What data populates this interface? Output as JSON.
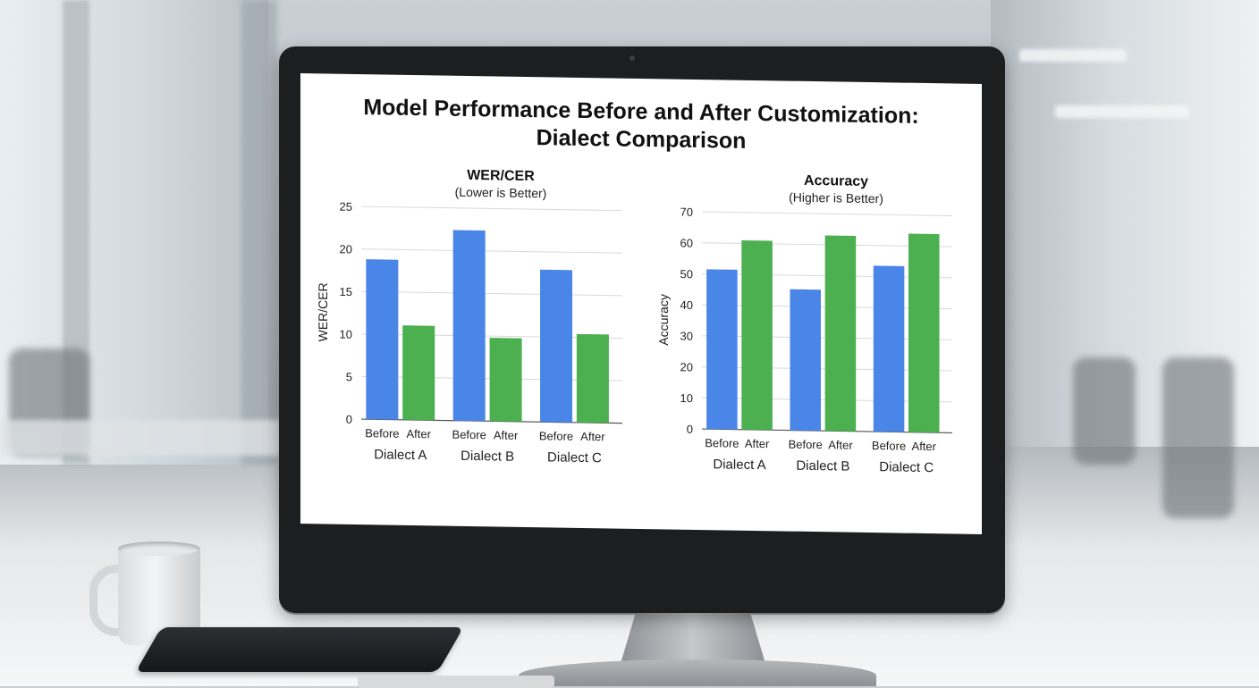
{
  "page_title": {
    "line1": "Model Performance Before and After Customization:",
    "line2": "Dialect Comparison"
  },
  "colors": {
    "before": "#4a86e8",
    "after": "#4caf50",
    "grid": "#d9d9d9"
  },
  "chart_data": [
    {
      "type": "bar",
      "title": "WER/CER",
      "subtitle": "(Lower is Better)",
      "ylabel": "WER/CER",
      "xlabel": "",
      "ylim": [
        0,
        25
      ],
      "yticks": [
        0,
        5,
        10,
        15,
        20,
        25
      ],
      "grid": true,
      "categories": [
        "Dialect A",
        "Dialect B",
        "Dialect C"
      ],
      "bar_labels": [
        "Before",
        "After"
      ],
      "series": [
        {
          "name": "Before",
          "values": [
            18.8,
            22.4,
            17.9
          ]
        },
        {
          "name": "After",
          "values": [
            11.1,
            9.8,
            10.4
          ]
        }
      ]
    },
    {
      "type": "bar",
      "title": "Accuracy",
      "subtitle": "(Higher is Better)",
      "ylabel": "Accuracy",
      "xlabel": "",
      "ylim": [
        0,
        70
      ],
      "yticks": [
        0,
        10,
        20,
        30,
        40,
        50,
        60,
        70
      ],
      "grid": true,
      "categories": [
        "Dialect A",
        "Dialect B",
        "Dialect C"
      ],
      "bar_labels": [
        "Before",
        "After"
      ],
      "series": [
        {
          "name": "Before",
          "values": [
            51.5,
            45.5,
            53.5
          ]
        },
        {
          "name": "After",
          "values": [
            61.0,
            63.0,
            64.0
          ]
        }
      ]
    }
  ]
}
